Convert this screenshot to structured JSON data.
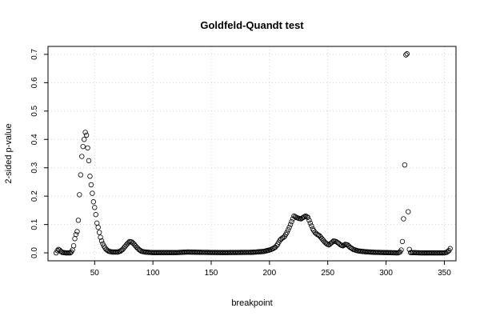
{
  "chart_data": {
    "type": "scatter",
    "title": "Goldfeld-Quandt test",
    "xlabel": "breakpoint",
    "ylabel": "2-sided p-value",
    "xlim": [
      10,
      360
    ],
    "ylim": [
      -0.028,
      0.728
    ],
    "xticks": [
      50,
      100,
      150,
      200,
      250,
      300,
      350
    ],
    "yticks": [
      0.0,
      0.1,
      0.2,
      0.3,
      0.4,
      0.5,
      0.6,
      0.7
    ],
    "ytick_labels": [
      "0.0",
      "0.1",
      "0.2",
      "0.3",
      "0.4",
      "0.5",
      "0.6",
      "0.7"
    ],
    "grid": true,
    "marker": "open-circle",
    "x_range": [
      17,
      355
    ],
    "y_keypoints": [
      [
        17,
        0.0
      ],
      [
        18,
        0.008
      ],
      [
        19,
        0.012
      ],
      [
        20,
        0.01
      ],
      [
        21,
        0.005
      ],
      [
        22,
        0.002
      ],
      [
        25,
        0.0
      ],
      [
        29,
        0.0
      ],
      [
        30,
        0.003
      ],
      [
        31,
        0.01
      ],
      [
        32,
        0.025
      ],
      [
        33,
        0.05
      ],
      [
        34,
        0.065
      ],
      [
        35,
        0.075
      ],
      [
        36,
        0.115
      ],
      [
        37,
        0.205
      ],
      [
        38,
        0.275
      ],
      [
        39,
        0.34
      ],
      [
        40,
        0.375
      ],
      [
        41,
        0.4
      ],
      [
        42,
        0.425
      ],
      [
        43,
        0.415
      ],
      [
        44,
        0.37
      ],
      [
        45,
        0.325
      ],
      [
        46,
        0.27
      ],
      [
        47,
        0.24
      ],
      [
        48,
        0.21
      ],
      [
        49,
        0.18
      ],
      [
        50,
        0.16
      ],
      [
        51,
        0.135
      ],
      [
        52,
        0.105
      ],
      [
        53,
        0.09
      ],
      [
        54,
        0.072
      ],
      [
        55,
        0.055
      ],
      [
        56,
        0.042
      ],
      [
        57,
        0.032
      ],
      [
        58,
        0.024
      ],
      [
        59,
        0.017
      ],
      [
        60,
        0.012
      ],
      [
        62,
        0.006
      ],
      [
        65,
        0.003
      ],
      [
        70,
        0.003
      ],
      [
        72,
        0.006
      ],
      [
        74,
        0.012
      ],
      [
        76,
        0.022
      ],
      [
        78,
        0.032
      ],
      [
        80,
        0.04
      ],
      [
        82,
        0.038
      ],
      [
        84,
        0.03
      ],
      [
        86,
        0.02
      ],
      [
        88,
        0.012
      ],
      [
        90,
        0.006
      ],
      [
        93,
        0.003
      ],
      [
        100,
        0.001
      ],
      [
        120,
        0.001
      ],
      [
        130,
        0.003
      ],
      [
        140,
        0.002
      ],
      [
        160,
        0.001
      ],
      [
        185,
        0.002
      ],
      [
        195,
        0.005
      ],
      [
        200,
        0.01
      ],
      [
        203,
        0.015
      ],
      [
        205,
        0.02
      ],
      [
        207,
        0.03
      ],
      [
        209,
        0.045
      ],
      [
        211,
        0.052
      ],
      [
        213,
        0.058
      ],
      [
        215,
        0.072
      ],
      [
        217,
        0.09
      ],
      [
        219,
        0.11
      ],
      [
        221,
        0.13
      ],
      [
        223,
        0.125
      ],
      [
        225,
        0.122
      ],
      [
        227,
        0.12
      ],
      [
        229,
        0.125
      ],
      [
        231,
        0.13
      ],
      [
        233,
        0.125
      ],
      [
        235,
        0.105
      ],
      [
        237,
        0.085
      ],
      [
        239,
        0.072
      ],
      [
        241,
        0.065
      ],
      [
        243,
        0.06
      ],
      [
        245,
        0.05
      ],
      [
        247,
        0.04
      ],
      [
        249,
        0.032
      ],
      [
        251,
        0.028
      ],
      [
        253,
        0.035
      ],
      [
        255,
        0.042
      ],
      [
        257,
        0.04
      ],
      [
        259,
        0.035
      ],
      [
        261,
        0.028
      ],
      [
        263,
        0.025
      ],
      [
        265,
        0.03
      ],
      [
        267,
        0.028
      ],
      [
        269,
        0.02
      ],
      [
        272,
        0.012
      ],
      [
        276,
        0.007
      ],
      [
        282,
        0.004
      ],
      [
        290,
        0.002
      ],
      [
        300,
        0.001
      ],
      [
        310,
        0.0
      ],
      [
        312,
        0.003
      ],
      [
        313,
        0.01
      ],
      [
        314,
        0.04
      ],
      [
        315,
        0.12
      ],
      [
        316,
        0.31
      ],
      [
        317,
        0.698
      ],
      [
        318,
        0.702
      ],
      [
        319,
        0.145
      ],
      [
        320,
        0.012
      ],
      [
        321,
        0.001
      ],
      [
        330,
        0.0
      ],
      [
        350,
        0.0
      ],
      [
        352,
        0.002
      ],
      [
        354,
        0.008
      ],
      [
        355,
        0.015
      ]
    ]
  }
}
